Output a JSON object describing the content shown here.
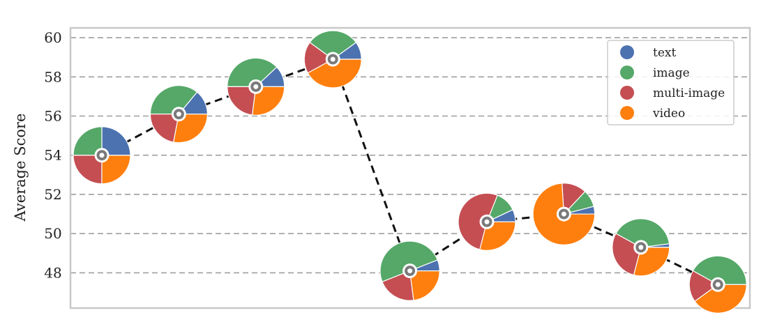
{
  "chart_data": {
    "type": "scatter",
    "title": "",
    "xlabel": "",
    "ylabel": "Average Score",
    "ylim": [
      46.2,
      60.5
    ],
    "yticks": [
      48,
      50,
      52,
      54,
      56,
      58,
      60
    ],
    "grid": true,
    "legend_placement": "top-right",
    "series": [
      {
        "name": "text",
        "color": "#4c72b0"
      },
      {
        "name": "image",
        "color": "#55a868"
      },
      {
        "name": "multi-image",
        "color": "#c44e52"
      },
      {
        "name": "video",
        "color": "#ff7f0e"
      }
    ],
    "points": [
      {
        "x": 1,
        "y": 54.0,
        "total": 1.0,
        "shares": [
          0.25,
          0.25,
          0.25,
          0.25
        ]
      },
      {
        "x": 2,
        "y": 56.1,
        "total": 1.0,
        "shares": [
          0.14,
          0.36,
          0.22,
          0.28
        ]
      },
      {
        "x": 3,
        "y": 57.5,
        "total": 1.0,
        "shares": [
          0.12,
          0.38,
          0.23,
          0.27
        ]
      },
      {
        "x": 4,
        "y": 58.9,
        "total": 1.0,
        "shares": [
          0.1,
          0.3,
          0.18,
          0.42
        ]
      },
      {
        "x": 5,
        "y": 48.1,
        "total": 1.04,
        "shares": [
          0.06,
          0.5,
          0.21,
          0.23
        ]
      },
      {
        "x": 6,
        "y": 50.6,
        "total": 1.0,
        "shares": [
          0.07,
          0.12,
          0.52,
          0.29
        ]
      },
      {
        "x": 7,
        "y": 51.0,
        "total": 1.08,
        "shares": [
          0.04,
          0.09,
          0.13,
          0.74
        ]
      },
      {
        "x": 8,
        "y": 49.3,
        "total": 1.0,
        "shares": [
          0.02,
          0.4,
          0.29,
          0.29
        ]
      },
      {
        "x": 9,
        "y": 47.4,
        "total": 1.0,
        "shares": [
          0.0,
          0.42,
          0.18,
          0.4
        ]
      }
    ]
  }
}
